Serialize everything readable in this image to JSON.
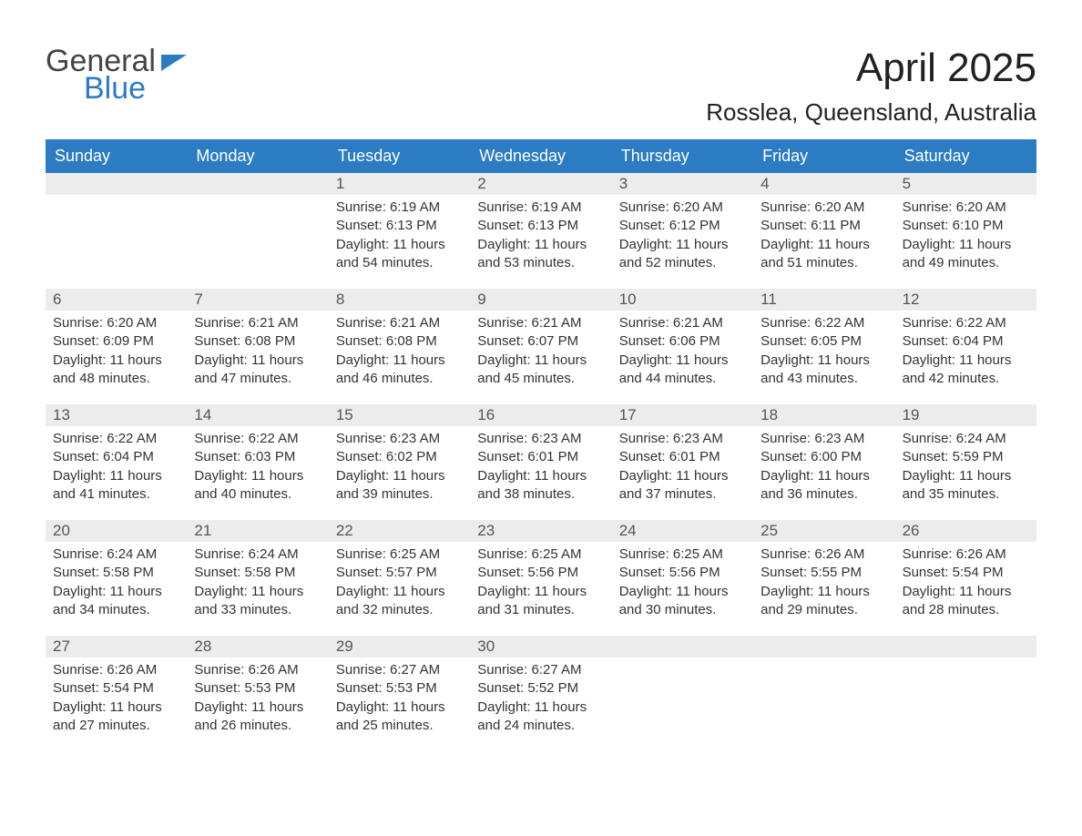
{
  "logo": {
    "general": "General",
    "blue": "Blue"
  },
  "header": {
    "title": "April 2025",
    "subtitle": "Rosslea, Queensland, Australia"
  },
  "calendar": {
    "type": "table",
    "colors": {
      "header_bg": "#2b7cc2",
      "header_text": "#ffffff",
      "daynum_bg": "#ececec",
      "daynum_text": "#555555",
      "body_text": "#333333",
      "border": "#2b7cc2",
      "page_bg": "#ffffff"
    },
    "fonts": {
      "title_size_pt": 33,
      "subtitle_size_pt": 20,
      "header_size_pt": 14,
      "daynum_size_pt": 13,
      "cell_size_pt": 11
    },
    "columns": [
      "Sunday",
      "Monday",
      "Tuesday",
      "Wednesday",
      "Thursday",
      "Friday",
      "Saturday"
    ],
    "weeks": [
      [
        null,
        null,
        {
          "n": "1",
          "sr": "Sunrise: 6:19 AM",
          "ss": "Sunset: 6:13 PM",
          "d1": "Daylight: 11 hours",
          "d2": "and 54 minutes."
        },
        {
          "n": "2",
          "sr": "Sunrise: 6:19 AM",
          "ss": "Sunset: 6:13 PM",
          "d1": "Daylight: 11 hours",
          "d2": "and 53 minutes."
        },
        {
          "n": "3",
          "sr": "Sunrise: 6:20 AM",
          "ss": "Sunset: 6:12 PM",
          "d1": "Daylight: 11 hours",
          "d2": "and 52 minutes."
        },
        {
          "n": "4",
          "sr": "Sunrise: 6:20 AM",
          "ss": "Sunset: 6:11 PM",
          "d1": "Daylight: 11 hours",
          "d2": "and 51 minutes."
        },
        {
          "n": "5",
          "sr": "Sunrise: 6:20 AM",
          "ss": "Sunset: 6:10 PM",
          "d1": "Daylight: 11 hours",
          "d2": "and 49 minutes."
        }
      ],
      [
        {
          "n": "6",
          "sr": "Sunrise: 6:20 AM",
          "ss": "Sunset: 6:09 PM",
          "d1": "Daylight: 11 hours",
          "d2": "and 48 minutes."
        },
        {
          "n": "7",
          "sr": "Sunrise: 6:21 AM",
          "ss": "Sunset: 6:08 PM",
          "d1": "Daylight: 11 hours",
          "d2": "and 47 minutes."
        },
        {
          "n": "8",
          "sr": "Sunrise: 6:21 AM",
          "ss": "Sunset: 6:08 PM",
          "d1": "Daylight: 11 hours",
          "d2": "and 46 minutes."
        },
        {
          "n": "9",
          "sr": "Sunrise: 6:21 AM",
          "ss": "Sunset: 6:07 PM",
          "d1": "Daylight: 11 hours",
          "d2": "and 45 minutes."
        },
        {
          "n": "10",
          "sr": "Sunrise: 6:21 AM",
          "ss": "Sunset: 6:06 PM",
          "d1": "Daylight: 11 hours",
          "d2": "and 44 minutes."
        },
        {
          "n": "11",
          "sr": "Sunrise: 6:22 AM",
          "ss": "Sunset: 6:05 PM",
          "d1": "Daylight: 11 hours",
          "d2": "and 43 minutes."
        },
        {
          "n": "12",
          "sr": "Sunrise: 6:22 AM",
          "ss": "Sunset: 6:04 PM",
          "d1": "Daylight: 11 hours",
          "d2": "and 42 minutes."
        }
      ],
      [
        {
          "n": "13",
          "sr": "Sunrise: 6:22 AM",
          "ss": "Sunset: 6:04 PM",
          "d1": "Daylight: 11 hours",
          "d2": "and 41 minutes."
        },
        {
          "n": "14",
          "sr": "Sunrise: 6:22 AM",
          "ss": "Sunset: 6:03 PM",
          "d1": "Daylight: 11 hours",
          "d2": "and 40 minutes."
        },
        {
          "n": "15",
          "sr": "Sunrise: 6:23 AM",
          "ss": "Sunset: 6:02 PM",
          "d1": "Daylight: 11 hours",
          "d2": "and 39 minutes."
        },
        {
          "n": "16",
          "sr": "Sunrise: 6:23 AM",
          "ss": "Sunset: 6:01 PM",
          "d1": "Daylight: 11 hours",
          "d2": "and 38 minutes."
        },
        {
          "n": "17",
          "sr": "Sunrise: 6:23 AM",
          "ss": "Sunset: 6:01 PM",
          "d1": "Daylight: 11 hours",
          "d2": "and 37 minutes."
        },
        {
          "n": "18",
          "sr": "Sunrise: 6:23 AM",
          "ss": "Sunset: 6:00 PM",
          "d1": "Daylight: 11 hours",
          "d2": "and 36 minutes."
        },
        {
          "n": "19",
          "sr": "Sunrise: 6:24 AM",
          "ss": "Sunset: 5:59 PM",
          "d1": "Daylight: 11 hours",
          "d2": "and 35 minutes."
        }
      ],
      [
        {
          "n": "20",
          "sr": "Sunrise: 6:24 AM",
          "ss": "Sunset: 5:58 PM",
          "d1": "Daylight: 11 hours",
          "d2": "and 34 minutes."
        },
        {
          "n": "21",
          "sr": "Sunrise: 6:24 AM",
          "ss": "Sunset: 5:58 PM",
          "d1": "Daylight: 11 hours",
          "d2": "and 33 minutes."
        },
        {
          "n": "22",
          "sr": "Sunrise: 6:25 AM",
          "ss": "Sunset: 5:57 PM",
          "d1": "Daylight: 11 hours",
          "d2": "and 32 minutes."
        },
        {
          "n": "23",
          "sr": "Sunrise: 6:25 AM",
          "ss": "Sunset: 5:56 PM",
          "d1": "Daylight: 11 hours",
          "d2": "and 31 minutes."
        },
        {
          "n": "24",
          "sr": "Sunrise: 6:25 AM",
          "ss": "Sunset: 5:56 PM",
          "d1": "Daylight: 11 hours",
          "d2": "and 30 minutes."
        },
        {
          "n": "25",
          "sr": "Sunrise: 6:26 AM",
          "ss": "Sunset: 5:55 PM",
          "d1": "Daylight: 11 hours",
          "d2": "and 29 minutes."
        },
        {
          "n": "26",
          "sr": "Sunrise: 6:26 AM",
          "ss": "Sunset: 5:54 PM",
          "d1": "Daylight: 11 hours",
          "d2": "and 28 minutes."
        }
      ],
      [
        {
          "n": "27",
          "sr": "Sunrise: 6:26 AM",
          "ss": "Sunset: 5:54 PM",
          "d1": "Daylight: 11 hours",
          "d2": "and 27 minutes."
        },
        {
          "n": "28",
          "sr": "Sunrise: 6:26 AM",
          "ss": "Sunset: 5:53 PM",
          "d1": "Daylight: 11 hours",
          "d2": "and 26 minutes."
        },
        {
          "n": "29",
          "sr": "Sunrise: 6:27 AM",
          "ss": "Sunset: 5:53 PM",
          "d1": "Daylight: 11 hours",
          "d2": "and 25 minutes."
        },
        {
          "n": "30",
          "sr": "Sunrise: 6:27 AM",
          "ss": "Sunset: 5:52 PM",
          "d1": "Daylight: 11 hours",
          "d2": "and 24 minutes."
        },
        null,
        null,
        null
      ]
    ]
  }
}
